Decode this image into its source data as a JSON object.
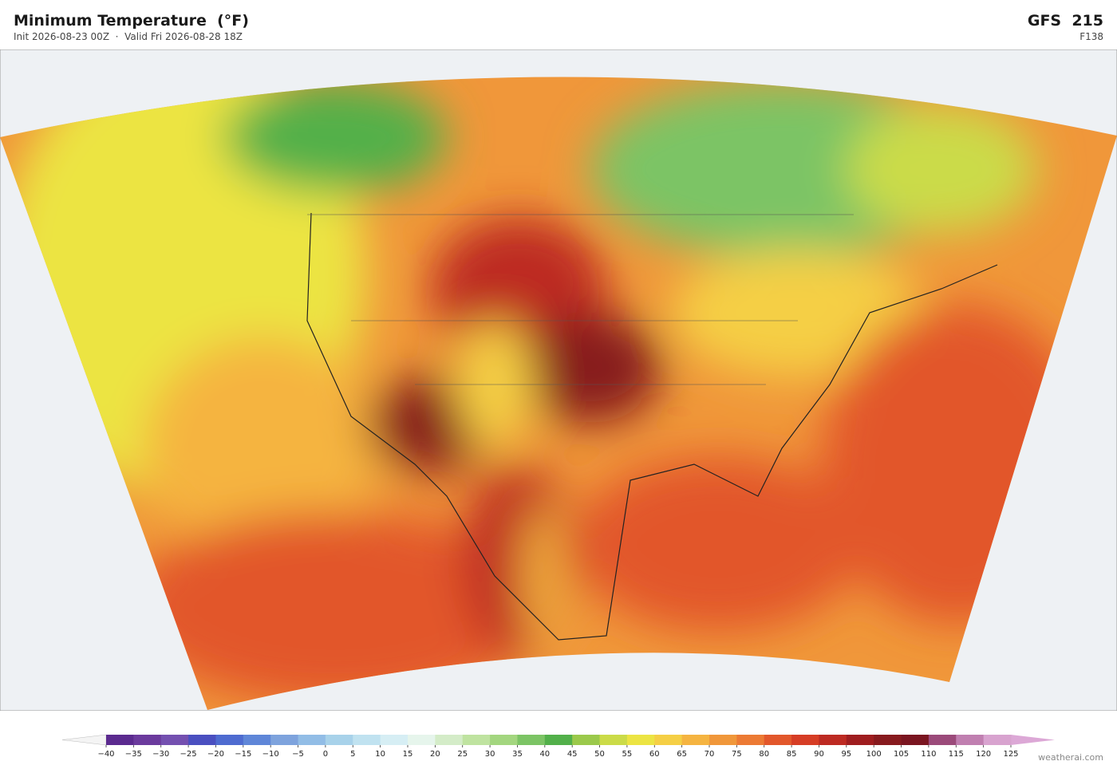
{
  "header": {
    "title": "Minimum Temperature  (°F)",
    "subtitle": "Init 2026-08-23 00Z  ·  Valid Fri 2026-08-28 18Z",
    "model": "GFS  215",
    "forecast_hour": "F138"
  },
  "colorbar": {
    "ticks": [
      "−40",
      "−35",
      "−30",
      "−25",
      "−20",
      "−15",
      "−10",
      "−5",
      "0",
      "5",
      "10",
      "15",
      "20",
      "25",
      "30",
      "35",
      "40",
      "45",
      "50",
      "55",
      "60",
      "65",
      "70",
      "75",
      "80",
      "85",
      "90",
      "95",
      "100",
      "105",
      "110",
      "115",
      "120",
      "125"
    ],
    "colors": [
      "#5b2a8f",
      "#6b3a9d",
      "#7450b0",
      "#4a4fc0",
      "#4e6bd0",
      "#5f86d8",
      "#7ea3dd",
      "#92bde6",
      "#a8d2ea",
      "#c0e2f0",
      "#d6eef4",
      "#e6f5ec",
      "#d4ecc8",
      "#bfe3a0",
      "#a3d67f",
      "#7cc465",
      "#52b04a",
      "#9bc94b",
      "#cbdb48",
      "#ece443",
      "#f5cf45",
      "#f5b441",
      "#f0973a",
      "#ec7a34",
      "#e2572b",
      "#d63d25",
      "#bd2a22",
      "#9f1d1f",
      "#871a1e",
      "#7a1520",
      "#9b4a7a",
      "#c07fb0",
      "#d8a3cf"
    ],
    "under_color": "#f4f4f4",
    "over_color": "#dca8d6"
  },
  "watermark": "weatherai.com"
}
